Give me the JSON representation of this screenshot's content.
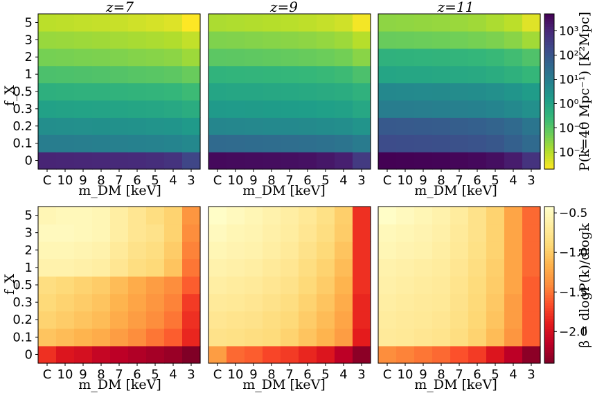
{
  "chart_data": [
    {
      "type": "heatmap",
      "row": "top",
      "title": "z=7",
      "xlabel": "m_DM [keV]",
      "ylabel": "f_X",
      "categories": [
        "C",
        "10",
        "9",
        "8",
        "7",
        "6",
        "5",
        "4",
        "3"
      ],
      "y_categories": [
        "0",
        "0.1",
        "0.2",
        "0.3",
        "0.5",
        "1",
        "2",
        "3",
        "5"
      ],
      "colormap": "viridis_r",
      "log_scale": true,
      "values_log10": [
        [
          3.05,
          3.02,
          3.0,
          2.98,
          2.95,
          2.92,
          2.85,
          2.75,
          2.35
        ],
        [
          1.0,
          0.98,
          0.96,
          0.94,
          0.92,
          0.88,
          0.85,
          0.8,
          0.7
        ],
        [
          0.55,
          0.53,
          0.51,
          0.49,
          0.47,
          0.44,
          0.41,
          0.37,
          0.25
        ],
        [
          0.05,
          0.03,
          0.01,
          -0.01,
          -0.03,
          -0.06,
          -0.09,
          -0.14,
          -0.25
        ],
        [
          -0.35,
          -0.37,
          -0.39,
          -0.41,
          -0.43,
          -0.46,
          -0.49,
          -0.54,
          -0.65
        ],
        [
          -0.85,
          -0.87,
          -0.89,
          -0.92,
          -0.95,
          -0.99,
          -1.02,
          -1.07,
          -1.2
        ],
        [
          -1.35,
          -1.37,
          -1.4,
          -1.42,
          -1.45,
          -1.5,
          -1.53,
          -1.58,
          -1.75
        ],
        [
          -1.7,
          -1.72,
          -1.75,
          -1.78,
          -1.82,
          -1.86,
          -1.9,
          -1.95,
          -2.12
        ],
        [
          -2.05,
          -2.08,
          -2.12,
          -2.15,
          -2.18,
          -2.25,
          -2.3,
          -2.38,
          -2.7
        ]
      ]
    },
    {
      "type": "heatmap",
      "row": "top",
      "title": "z=9",
      "xlabel": "m_DM [keV]",
      "ylabel": "",
      "categories": [
        "C",
        "10",
        "9",
        "8",
        "7",
        "6",
        "5",
        "4",
        "3"
      ],
      "y_categories": [
        "0",
        "0.1",
        "0.2",
        "0.3",
        "0.5",
        "1",
        "2",
        "3",
        "5"
      ],
      "colormap": "viridis_r",
      "log_scale": true,
      "values_log10": [
        [
          3.55,
          3.52,
          3.5,
          3.48,
          3.45,
          3.4,
          3.3,
          3.15,
          2.6
        ],
        [
          1.5,
          1.48,
          1.46,
          1.44,
          1.41,
          1.37,
          1.32,
          1.25,
          1.05
        ],
        [
          0.75,
          0.73,
          0.71,
          0.69,
          0.67,
          0.64,
          0.6,
          0.55,
          0.4
        ],
        [
          0.25,
          0.23,
          0.21,
          0.19,
          0.17,
          0.14,
          0.1,
          0.05,
          -0.1
        ],
        [
          -0.05,
          -0.07,
          -0.09,
          -0.11,
          -0.13,
          -0.16,
          -0.2,
          -0.25,
          -0.4
        ],
        [
          -0.45,
          -0.47,
          -0.49,
          -0.51,
          -0.53,
          -0.57,
          -0.61,
          -0.67,
          -0.85
        ],
        [
          -1.05,
          -1.07,
          -1.09,
          -1.12,
          -1.15,
          -1.19,
          -1.24,
          -1.32,
          -1.55
        ],
        [
          -1.45,
          -1.47,
          -1.5,
          -1.53,
          -1.56,
          -1.6,
          -1.66,
          -1.75,
          -2.0
        ],
        [
          -1.9,
          -1.93,
          -1.96,
          -1.99,
          -2.03,
          -2.08,
          -2.15,
          -2.25,
          -2.6
        ]
      ]
    },
    {
      "type": "heatmap",
      "row": "top",
      "title": "z=11",
      "xlabel": "m_DM [keV]",
      "ylabel": "",
      "categories": [
        "C",
        "10",
        "9",
        "8",
        "7",
        "6",
        "5",
        "4",
        "3"
      ],
      "y_categories": [
        "0",
        "0.1",
        "0.2",
        "0.3",
        "0.5",
        "1",
        "2",
        "3",
        "5"
      ],
      "colormap": "viridis_r",
      "log_scale": true,
      "values_log10": [
        [
          3.7,
          3.68,
          3.66,
          3.64,
          3.6,
          3.55,
          3.45,
          3.2,
          2.75
        ],
        [
          2.2,
          2.18,
          2.16,
          2.14,
          2.1,
          2.05,
          1.95,
          1.75,
          1.5
        ],
        [
          1.9,
          1.88,
          1.86,
          1.84,
          1.8,
          1.74,
          1.65,
          1.5,
          1.2
        ],
        [
          1.0,
          0.98,
          0.96,
          0.94,
          0.91,
          0.87,
          0.8,
          0.68,
          0.5
        ],
        [
          0.7,
          0.68,
          0.66,
          0.64,
          0.61,
          0.57,
          0.5,
          0.38,
          0.2
        ],
        [
          -0.05,
          -0.07,
          -0.09,
          -0.11,
          -0.14,
          -0.18,
          -0.25,
          -0.38,
          -0.55
        ],
        [
          -0.4,
          -0.42,
          -0.44,
          -0.46,
          -0.49,
          -0.53,
          -0.6,
          -0.72,
          -0.9
        ],
        [
          -1.2,
          -1.22,
          -1.24,
          -1.27,
          -1.3,
          -1.35,
          -1.42,
          -1.55,
          -1.8
        ],
        [
          -1.6,
          -1.62,
          -1.65,
          -1.68,
          -1.72,
          -1.78,
          -1.9,
          -2.05,
          -2.4
        ]
      ]
    },
    {
      "type": "heatmap",
      "row": "bottom",
      "title": "",
      "xlabel": "m_DM [keV]",
      "ylabel": "f_X",
      "categories": [
        "C",
        "10",
        "9",
        "8",
        "7",
        "6",
        "5",
        "4",
        "3"
      ],
      "y_categories": [
        "0",
        "0.1",
        "0.2",
        "0.3",
        "0.5",
        "1",
        "2",
        "3",
        "5"
      ],
      "colormap": "YlOrRd_r",
      "log_scale": false,
      "values": [
        [
          -1.8,
          -1.95,
          -2.0,
          -2.1,
          -2.15,
          -2.2,
          -2.25,
          -2.3,
          -2.4
        ],
        [
          -1.05,
          -1.1,
          -1.15,
          -1.2,
          -1.3,
          -1.4,
          -1.5,
          -1.6,
          -1.85
        ],
        [
          -0.95,
          -1.0,
          -1.05,
          -1.1,
          -1.2,
          -1.3,
          -1.4,
          -1.5,
          -1.8
        ],
        [
          -0.9,
          -0.95,
          -1.0,
          -1.05,
          -1.15,
          -1.25,
          -1.35,
          -1.45,
          -1.75
        ],
        [
          -0.85,
          -0.9,
          -0.95,
          -1.0,
          -1.1,
          -1.2,
          -1.3,
          -1.4,
          -1.6
        ],
        [
          -0.6,
          -0.6,
          -0.62,
          -0.65,
          -0.75,
          -0.85,
          -0.9,
          -1.05,
          -1.5
        ],
        [
          -0.55,
          -0.55,
          -0.57,
          -0.6,
          -0.7,
          -0.8,
          -0.85,
          -1.0,
          -1.45
        ],
        [
          -0.5,
          -0.5,
          -0.52,
          -0.55,
          -0.65,
          -0.75,
          -0.8,
          -0.95,
          -1.4
        ],
        [
          -0.55,
          -0.52,
          -0.52,
          -0.55,
          -0.65,
          -0.75,
          -0.85,
          -0.95,
          -1.35
        ]
      ]
    },
    {
      "type": "heatmap",
      "row": "bottom",
      "title": "",
      "xlabel": "m_DM [keV]",
      "ylabel": "",
      "categories": [
        "C",
        "10",
        "9",
        "8",
        "7",
        "6",
        "5",
        "4",
        "3"
      ],
      "y_categories": [
        "0",
        "0.1",
        "0.2",
        "0.3",
        "0.5",
        "1",
        "2",
        "3",
        "5"
      ],
      "colormap": "YlOrRd_r",
      "log_scale": false,
      "values": [
        [
          -1.3,
          -1.55,
          -1.6,
          -1.7,
          -1.75,
          -1.85,
          -1.95,
          -2.15,
          -2.35
        ],
        [
          -0.8,
          -0.82,
          -0.85,
          -0.88,
          -0.95,
          -1.05,
          -1.15,
          -1.3,
          -1.9
        ],
        [
          -0.75,
          -0.78,
          -0.8,
          -0.85,
          -0.9,
          -1.0,
          -1.1,
          -1.25,
          -1.85
        ],
        [
          -0.7,
          -0.72,
          -0.75,
          -0.8,
          -0.85,
          -0.95,
          -1.05,
          -1.2,
          -1.85
        ],
        [
          -0.65,
          -0.68,
          -0.7,
          -0.75,
          -0.8,
          -0.9,
          -1.0,
          -1.15,
          -1.8
        ],
        [
          -0.6,
          -0.62,
          -0.65,
          -0.7,
          -0.75,
          -0.85,
          -0.95,
          -1.1,
          -1.8
        ],
        [
          -0.55,
          -0.58,
          -0.6,
          -0.65,
          -0.7,
          -0.8,
          -0.9,
          -1.05,
          -1.8
        ],
        [
          -0.5,
          -0.55,
          -0.57,
          -0.62,
          -0.67,
          -0.75,
          -0.85,
          -1.0,
          -1.8
        ],
        [
          -0.45,
          -0.5,
          -0.55,
          -0.6,
          -0.65,
          -0.72,
          -0.82,
          -0.98,
          -1.8
        ]
      ]
    },
    {
      "type": "heatmap",
      "row": "bottom",
      "title": "",
      "xlabel": "m_DM [keV]",
      "ylabel": "",
      "categories": [
        "C",
        "10",
        "9",
        "8",
        "7",
        "6",
        "5",
        "4",
        "3"
      ],
      "y_categories": [
        "0",
        "0.1",
        "0.2",
        "0.3",
        "0.5",
        "1",
        "2",
        "3",
        "5"
      ],
      "colormap": "YlOrRd_r",
      "log_scale": false,
      "values": [
        [
          -1.4,
          -1.45,
          -1.5,
          -1.55,
          -1.65,
          -1.75,
          -1.95,
          -2.15,
          -2.35
        ],
        [
          -0.7,
          -0.72,
          -0.75,
          -0.78,
          -0.85,
          -0.95,
          -1.1,
          -1.35,
          -1.6
        ],
        [
          -0.68,
          -0.7,
          -0.72,
          -0.75,
          -0.82,
          -0.92,
          -1.05,
          -1.3,
          -1.6
        ],
        [
          -0.65,
          -0.68,
          -0.7,
          -0.72,
          -0.8,
          -0.9,
          -1.02,
          -1.3,
          -1.6
        ],
        [
          -0.62,
          -0.65,
          -0.68,
          -0.7,
          -0.78,
          -0.88,
          -1.0,
          -1.25,
          -1.6
        ],
        [
          -0.6,
          -0.62,
          -0.65,
          -0.68,
          -0.75,
          -0.85,
          -0.98,
          -1.25,
          -1.55
        ],
        [
          -0.55,
          -0.58,
          -0.6,
          -0.65,
          -0.72,
          -0.82,
          -0.95,
          -1.25,
          -1.55
        ],
        [
          -0.52,
          -0.55,
          -0.58,
          -0.62,
          -0.7,
          -0.8,
          -0.95,
          -1.25,
          -1.55
        ],
        [
          -0.45,
          -0.5,
          -0.55,
          -0.6,
          -0.68,
          -0.8,
          -0.95,
          -1.25,
          -1.55
        ]
      ]
    }
  ],
  "colorbar_top": {
    "label": "P(k=40 Mpc⁻¹) [K²Mpc]",
    "ticks": [
      "10³",
      "10²",
      "10¹",
      "10⁰",
      "10⁻¹",
      "10⁻²"
    ],
    "tick_values_log10": [
      3,
      2,
      1,
      0,
      -1,
      -2
    ],
    "range_log10": [
      -2.7,
      3.7
    ],
    "colormap": "viridis_r"
  },
  "colorbar_bottom": {
    "label": "β = dlogP(k)/dlogk",
    "ticks": [
      "−0.5",
      "−1.0",
      "−1.5",
      "−2.0"
    ],
    "tick_values": [
      -0.5,
      -1.0,
      -1.5,
      -2.0
    ],
    "range": [
      -2.4,
      -0.42
    ],
    "colormap": "YlOrRd_r"
  },
  "colors": {
    "viridis": [
      "#440154",
      "#482878",
      "#3e4989",
      "#31688e",
      "#26828e",
      "#1f9e89",
      "#35b779",
      "#6ece58",
      "#b5de2b",
      "#fde725"
    ],
    "ylorrd": [
      "#ffffcc",
      "#ffeda0",
      "#fed976",
      "#feb24c",
      "#fd8d3c",
      "#fc4e2a",
      "#e31a1c",
      "#bd0026",
      "#800026"
    ]
  }
}
